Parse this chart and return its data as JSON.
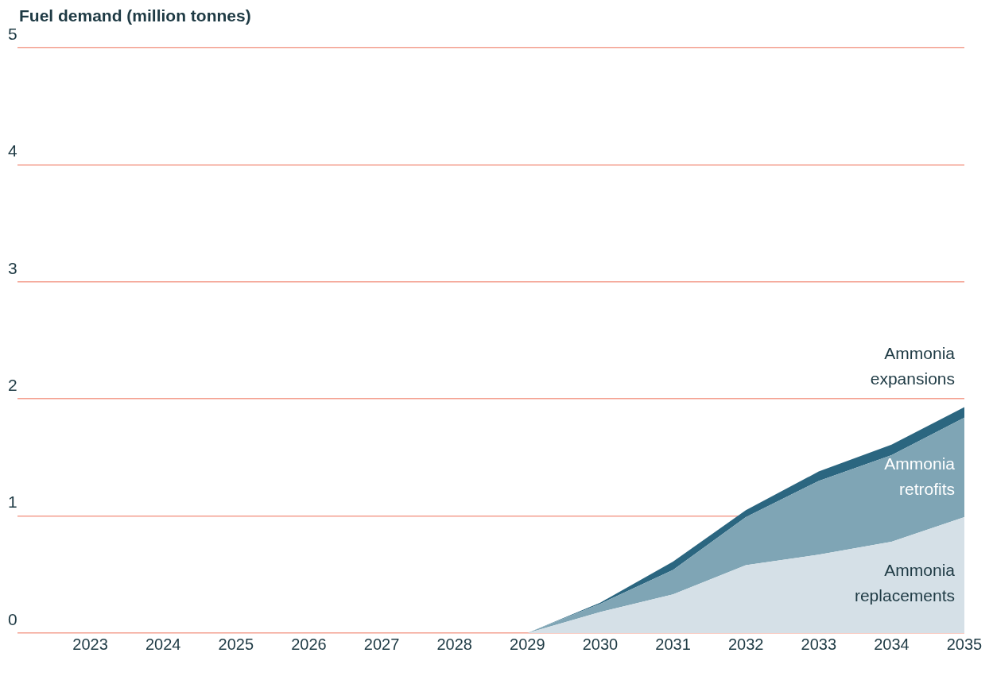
{
  "chart_data": {
    "type": "area",
    "ylabel": "Fuel demand (million tonnes)",
    "stacked": true,
    "x": [
      2023,
      2024,
      2025,
      2026,
      2027,
      2028,
      2029,
      2030,
      2031,
      2032,
      2033,
      2034,
      2035
    ],
    "xlim": [
      2022,
      2035
    ],
    "xticks": [
      2023,
      2024,
      2025,
      2026,
      2027,
      2028,
      2029,
      2030,
      2031,
      2032,
      2033,
      2034,
      2035
    ],
    "ylim": [
      0,
      5
    ],
    "yticks": [
      0,
      1,
      2,
      3,
      4,
      5
    ],
    "grid": "y",
    "legend": false,
    "series": [
      {
        "name": "Ammonia replacements",
        "color": "#d5e0e7",
        "values": [
          0,
          0,
          0,
          0,
          0,
          0,
          0,
          0.18,
          0.33,
          0.58,
          0.67,
          0.78,
          0.99
        ]
      },
      {
        "name": "Ammonia retrofits",
        "color": "#7fa5b5",
        "values": [
          0,
          0,
          0,
          0,
          0,
          0,
          0,
          0.07,
          0.21,
          0.41,
          0.63,
          0.74,
          0.85
        ]
      },
      {
        "name": "Ammonia expansions",
        "color": "#2b6680",
        "values": [
          0,
          0,
          0,
          0,
          0,
          0,
          0,
          0.01,
          0.07,
          0.06,
          0.08,
          0.09,
          0.09
        ]
      }
    ]
  }
}
